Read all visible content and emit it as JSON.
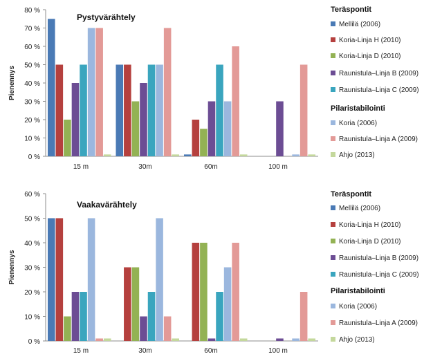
{
  "chart_data": [
    {
      "type": "bar",
      "title": "Pystyvärähtely",
      "ylabel": "Pienennys",
      "xlabel": "",
      "ylim": [
        0,
        80
      ],
      "yticks": [
        "0 %",
        "10 %",
        "20 %",
        "30 %",
        "40 %",
        "50 %",
        "60 %",
        "70 %",
        "80 %"
      ],
      "grid": false,
      "legend_position": "right",
      "categories": [
        "15 m",
        "30m",
        "60m",
        "100 m"
      ],
      "legend_groups": [
        {
          "heading": "Teräspontit",
          "series": [
            0,
            1,
            2,
            3,
            4
          ]
        },
        {
          "heading": "Pilaristabilointi",
          "series": [
            5,
            6,
            7
          ]
        }
      ],
      "series": [
        {
          "name": "Mellilä (2006)",
          "color": "#4a7ab5",
          "values": [
            75,
            50,
            1,
            0
          ]
        },
        {
          "name": "Koria-Linja H (2010)",
          "color": "#b5403e",
          "values": [
            50,
            50,
            20,
            0
          ]
        },
        {
          "name": "Koria-Linja D (2010)",
          "color": "#93b254",
          "values": [
            20,
            30,
            15,
            0
          ]
        },
        {
          "name": "Raunistula–Linja B (2009)",
          "color": "#6c4d94",
          "values": [
            40,
            40,
            30,
            30
          ]
        },
        {
          "name": "Raunistula–Linja C (2009)",
          "color": "#3aa5be",
          "values": [
            50,
            50,
            50,
            0
          ]
        },
        {
          "name": "Koria (2006)",
          "color": "#9bb7de",
          "values": [
            70,
            50,
            30,
            1
          ]
        },
        {
          "name": "Raunistula–Linja A (2009)",
          "color": "#e39a97",
          "values": [
            70,
            70,
            60,
            50
          ]
        },
        {
          "name": "Ahjo (2013)",
          "color": "#c4d89c",
          "values": [
            1,
            1,
            1,
            1
          ]
        }
      ]
    },
    {
      "type": "bar",
      "title": "Vaakavärähtely",
      "ylabel": "Pienennys",
      "xlabel": "",
      "ylim": [
        0,
        60
      ],
      "yticks": [
        "0 %",
        "10 %",
        "20 %",
        "30 %",
        "40 %",
        "50 %",
        "60 %"
      ],
      "grid": false,
      "legend_position": "right",
      "categories": [
        "15 m",
        "30m",
        "60m",
        "100 m"
      ],
      "legend_groups": [
        {
          "heading": "Teräspontit",
          "series": [
            0,
            1,
            2,
            3,
            4
          ]
        },
        {
          "heading": "Pilaristabilointi",
          "series": [
            5,
            6,
            7
          ]
        }
      ],
      "series": [
        {
          "name": "Mellilä (2006)",
          "color": "#4a7ab5",
          "values": [
            50,
            0,
            0,
            0
          ]
        },
        {
          "name": "Koria-Linja H (2010)",
          "color": "#b5403e",
          "values": [
            50,
            30,
            40,
            0
          ]
        },
        {
          "name": "Koria-Linja D (2010)",
          "color": "#93b254",
          "values": [
            10,
            30,
            40,
            0
          ]
        },
        {
          "name": "Raunistula–Linja B (2009)",
          "color": "#6c4d94",
          "values": [
            20,
            10,
            1,
            1
          ]
        },
        {
          "name": "Raunistula–Linja C (2009)",
          "color": "#3aa5be",
          "values": [
            20,
            20,
            20,
            0
          ]
        },
        {
          "name": "Koria (2006)",
          "color": "#9bb7de",
          "values": [
            50,
            50,
            30,
            1
          ]
        },
        {
          "name": "Raunistula–Linja A (2009)",
          "color": "#e39a97",
          "values": [
            1,
            10,
            40,
            20
          ]
        },
        {
          "name": "Ahjo (2013)",
          "color": "#c4d89c",
          "values": [
            1,
            1,
            1,
            1
          ]
        }
      ]
    }
  ]
}
